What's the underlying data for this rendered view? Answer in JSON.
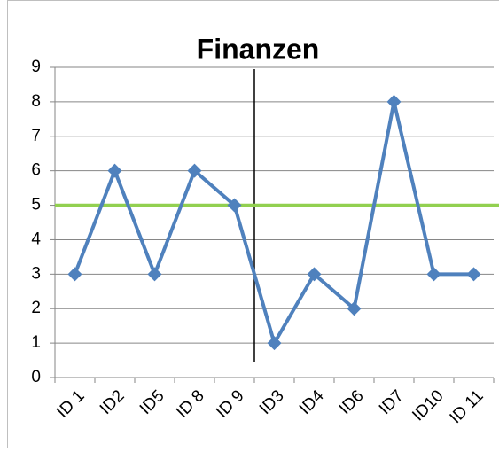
{
  "chart_data": {
    "type": "line",
    "title": "Finanzen",
    "categories": [
      "ID 1",
      "ID2",
      "ID5",
      "ID 8",
      "ID 9",
      "ID3",
      "ID4",
      "ID6",
      "ID7",
      "ID10",
      "ID 11"
    ],
    "series": [
      {
        "color": "#4f81bd",
        "values": [
          3,
          6,
          3,
          6,
          5,
          1,
          3,
          2,
          8,
          3,
          3
        ]
      }
    ],
    "hline": {
      "value": 5,
      "color": "#92d050"
    },
    "ylim": [
      0,
      9
    ],
    "yticks": [
      0,
      1,
      2,
      3,
      4,
      5,
      6,
      7,
      8,
      9
    ],
    "grid": true
  }
}
